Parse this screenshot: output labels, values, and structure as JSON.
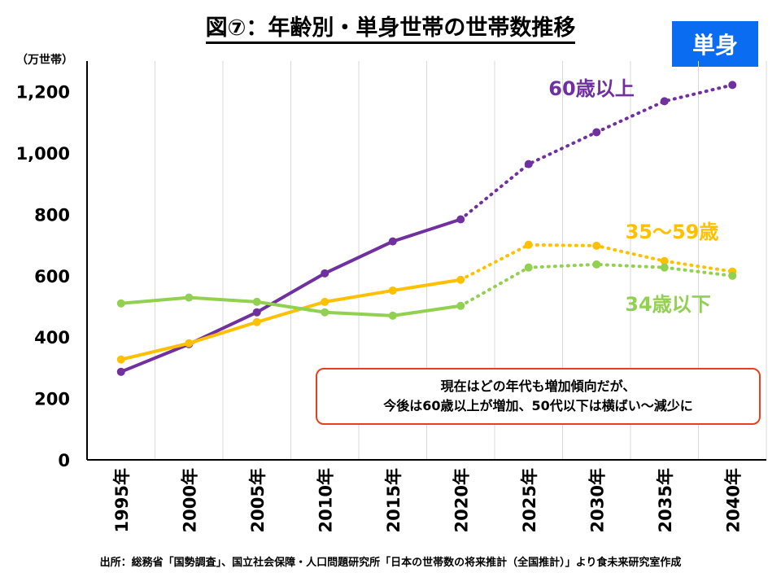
{
  "title": "図⑦：年齢別・単身世帯の世帯数推移",
  "badge": "単身",
  "source": "出所：総務省「国勢調査」、国立社会保障・人口問題研究所「日本の世帯数の将来推計（全国推計）」より食未来研究室作成",
  "callout": {
    "line1": "現在はどの年代も増加傾向だが、",
    "line2": "今後は60歳以上が増加、50代以下は横ばい～減少に"
  },
  "chart_data": {
    "type": "line",
    "title": "図⑦：年齢別・単身世帯の世帯数推移",
    "ylabel": "（万世帯）",
    "ylim": [
      0,
      1300
    ],
    "yticks": [
      0,
      200,
      400,
      600,
      800,
      1000,
      1200
    ],
    "ytick_labels": [
      "0",
      "200",
      "400",
      "600",
      "800",
      "1,000",
      "1,200"
    ],
    "categories": [
      "1995年",
      "2000年",
      "2005年",
      "2010年",
      "2015年",
      "2020年",
      "2025年",
      "2030年",
      "2035年",
      "2040年"
    ],
    "projection_start_index": 5,
    "series": [
      {
        "name": "60歳以上",
        "color": "#7030a0",
        "values": [
          287,
          377,
          481,
          608,
          712,
          784,
          964,
          1068,
          1169,
          1222
        ]
      },
      {
        "name": "35～59歳",
        "color": "#ffc000",
        "values": [
          327,
          380,
          449,
          515,
          552,
          587,
          701,
          698,
          648,
          614
        ]
      },
      {
        "name": "34歳以下",
        "color": "#92d050",
        "values": [
          510,
          529,
          515,
          481,
          470,
          502,
          627,
          637,
          627,
          600
        ]
      }
    ]
  }
}
